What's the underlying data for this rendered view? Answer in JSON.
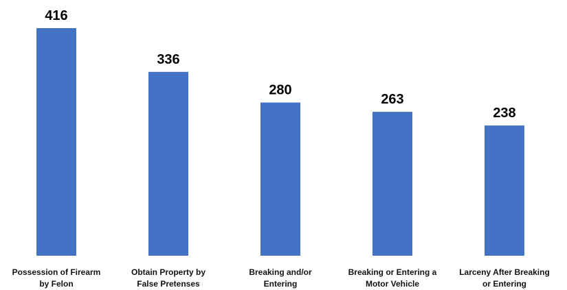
{
  "chart_data": {
    "type": "bar",
    "title": "",
    "xlabel": "",
    "ylabel": "",
    "categories": [
      [
        "Possession of Firearm",
        "by Felon"
      ],
      [
        "Obtain Property by",
        "False Pretenses"
      ],
      [
        "Breaking and/or",
        "Entering"
      ],
      [
        "Breaking or Entering a",
        "Motor Vehicle"
      ],
      [
        "Larceny After Breaking",
        "or Entering"
      ]
    ],
    "values": [
      416,
      336,
      280,
      263,
      238
    ],
    "value_labels": [
      "416",
      "336",
      "280",
      "263",
      "238"
    ],
    "ylim": [
      0,
      416
    ],
    "grid": false,
    "legend": "none",
    "bar_color": "#4472C4"
  }
}
